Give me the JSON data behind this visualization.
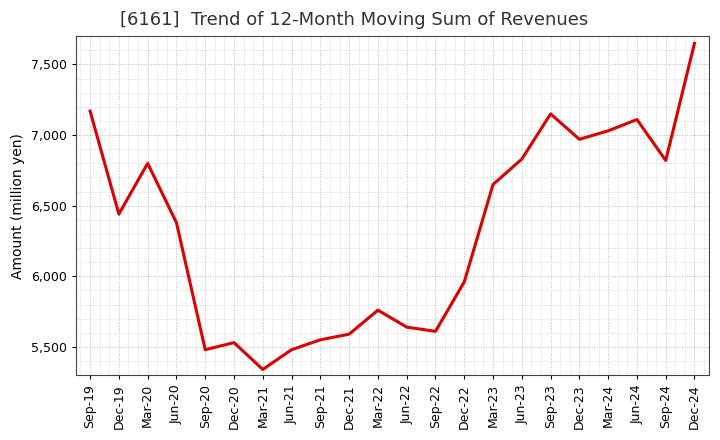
{
  "title": "[6161]  Trend of 12-Month Moving Sum of Revenues",
  "ylabel": "Amount (million yen)",
  "background_color": "#ffffff",
  "plot_bg_color": "#ffffff",
  "line_color": "#dd0000",
  "line_width": 2.2,
  "x_labels": [
    "Sep-19",
    "Dec-19",
    "Mar-20",
    "Jun-20",
    "Sep-20",
    "Dec-20",
    "Mar-21",
    "Jun-21",
    "Sep-21",
    "Dec-21",
    "Mar-22",
    "Jun-22",
    "Sep-22",
    "Dec-22",
    "Mar-23",
    "Jun-23",
    "Sep-23",
    "Dec-23",
    "Mar-24",
    "Jun-24",
    "Sep-24",
    "Dec-24"
  ],
  "values": [
    7170,
    6440,
    6800,
    6380,
    5480,
    5530,
    5340,
    5480,
    5550,
    5590,
    5760,
    5640,
    5610,
    5960,
    6650,
    6830,
    7150,
    6970,
    7030,
    7110,
    6820,
    7650
  ],
  "ylim": [
    5300,
    7700
  ],
  "yticks": [
    5500,
    6000,
    6500,
    7000,
    7500
  ],
  "grid_color": "#bbbbbb",
  "title_fontsize": 13,
  "ylabel_fontsize": 10,
  "tick_fontsize": 9,
  "title_color": "#333333",
  "title_fontweight": "normal"
}
